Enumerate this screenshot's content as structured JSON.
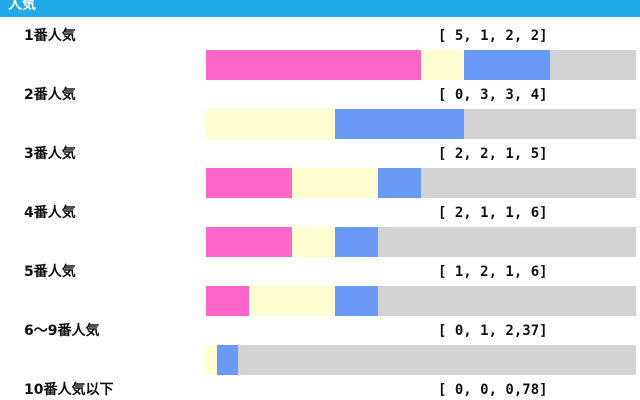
{
  "header": {
    "title": "人気"
  },
  "colors": {
    "first": "#fb66c8",
    "second": "#fefed0",
    "third": "#6a99f6",
    "other": "#d3d3d3",
    "header": "#21a8e8"
  },
  "chart_data": {
    "type": "bar",
    "stacked": true,
    "orientation": "horizontal",
    "categories": [
      "1番人気",
      "2番人気",
      "3番人気",
      "4番人気",
      "5番人気",
      "6〜9番人気",
      "10番人気以下"
    ],
    "series": [
      {
        "values": [
          5,
          0,
          2,
          2,
          1,
          0,
          0
        ]
      },
      {
        "values": [
          1,
          3,
          2,
          1,
          2,
          1,
          0
        ]
      },
      {
        "values": [
          2,
          3,
          1,
          1,
          1,
          2,
          0
        ]
      },
      {
        "values": [
          2,
          4,
          5,
          6,
          6,
          37,
          78
        ]
      }
    ],
    "records": [
      "[ 5, 1, 2, 2]",
      "[ 0, 3, 3, 4]",
      "[ 2, 2, 1, 5]",
      "[ 2, 1, 1, 6]",
      "[ 1, 2, 1, 6]",
      "[ 0, 1, 2,37]",
      "[ 0, 0, 0,78]"
    ]
  }
}
